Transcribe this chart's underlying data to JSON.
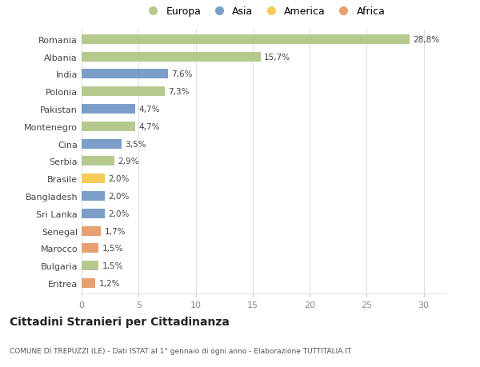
{
  "categories": [
    "Romania",
    "Albania",
    "India",
    "Polonia",
    "Pakistan",
    "Montenegro",
    "Cina",
    "Serbia",
    "Brasile",
    "Bangladesh",
    "Sri Lanka",
    "Senegal",
    "Marocco",
    "Bulgaria",
    "Eritrea"
  ],
  "values": [
    28.8,
    15.7,
    7.6,
    7.3,
    4.7,
    4.7,
    3.5,
    2.9,
    2.0,
    2.0,
    2.0,
    1.7,
    1.5,
    1.5,
    1.2
  ],
  "labels": [
    "28,8%",
    "15,7%",
    "7,6%",
    "7,3%",
    "4,7%",
    "4,7%",
    "3,5%",
    "2,9%",
    "2,0%",
    "2,0%",
    "2,0%",
    "1,7%",
    "1,5%",
    "1,5%",
    "1,2%"
  ],
  "continents": [
    "Europa",
    "Europa",
    "Asia",
    "Europa",
    "Asia",
    "Europa",
    "Asia",
    "Europa",
    "America",
    "Asia",
    "Asia",
    "Africa",
    "Africa",
    "Europa",
    "Africa"
  ],
  "colors": {
    "Europa": "#b5c98e",
    "Asia": "#7b9ec9",
    "America": "#f5cb5c",
    "Africa": "#e8a070"
  },
  "legend_labels": [
    "Europa",
    "Asia",
    "America",
    "Africa"
  ],
  "title": "Cittadini Stranieri per Cittadinanza",
  "subtitle": "COMUNE DI TREPUZZI (LE) - Dati ISTAT al 1° gennaio di ogni anno - Elaborazione TUTTITALIA.IT",
  "xlim": [
    0,
    32
  ],
  "xticks": [
    0,
    5,
    10,
    15,
    20,
    25,
    30
  ],
  "bg_color": "#ffffff",
  "grid_color": "#e0e0e0",
  "bar_height": 0.55
}
